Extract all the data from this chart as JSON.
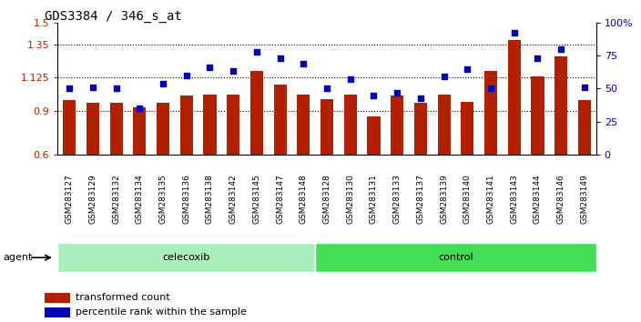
{
  "title": "GDS3384 / 346_s_at",
  "samples": [
    "GSM283127",
    "GSM283129",
    "GSM283132",
    "GSM283134",
    "GSM283135",
    "GSM283136",
    "GSM283138",
    "GSM283142",
    "GSM283145",
    "GSM283147",
    "GSM283148",
    "GSM283128",
    "GSM283130",
    "GSM283131",
    "GSM283133",
    "GSM283137",
    "GSM283139",
    "GSM283140",
    "GSM283141",
    "GSM283143",
    "GSM283144",
    "GSM283146",
    "GSM283149"
  ],
  "bar_values": [
    0.97,
    0.95,
    0.95,
    0.92,
    0.95,
    1.0,
    1.01,
    1.01,
    1.17,
    1.08,
    1.01,
    0.98,
    1.01,
    0.86,
    1.0,
    0.95,
    1.01,
    0.96,
    1.17,
    1.38,
    1.13,
    1.27,
    0.97
  ],
  "percentile_values": [
    50,
    51,
    50,
    35,
    54,
    60,
    66,
    63,
    78,
    73,
    69,
    50,
    57,
    45,
    47,
    43,
    59,
    65,
    50,
    92,
    73,
    80,
    51
  ],
  "celecoxib_count": 11,
  "control_count": 12,
  "bar_color": "#B22000",
  "dot_color": "#0000BB",
  "left_ylim": [
    0.6,
    1.5
  ],
  "left_yticks": [
    0.6,
    0.9,
    1.125,
    1.35,
    1.5
  ],
  "left_yticklabels": [
    "0.6",
    "0.9",
    "1.125",
    "1.35",
    "1.5"
  ],
  "right_ylim": [
    0,
    100
  ],
  "right_yticks": [
    0,
    25,
    50,
    75,
    100
  ],
  "right_yticklabels": [
    "0",
    "25",
    "50",
    "75",
    "100%"
  ],
  "hlines": [
    0.9,
    1.125,
    1.35
  ],
  "celecoxib_color": "#AAEEBB",
  "control_color": "#44DD55",
  "xlabel_bg_color": "#CCCCCC",
  "agent_label": "agent",
  "celecoxib_label": "celecoxib",
  "control_label": "control",
  "legend_bar_label": "transformed count",
  "legend_dot_label": "percentile rank within the sample"
}
